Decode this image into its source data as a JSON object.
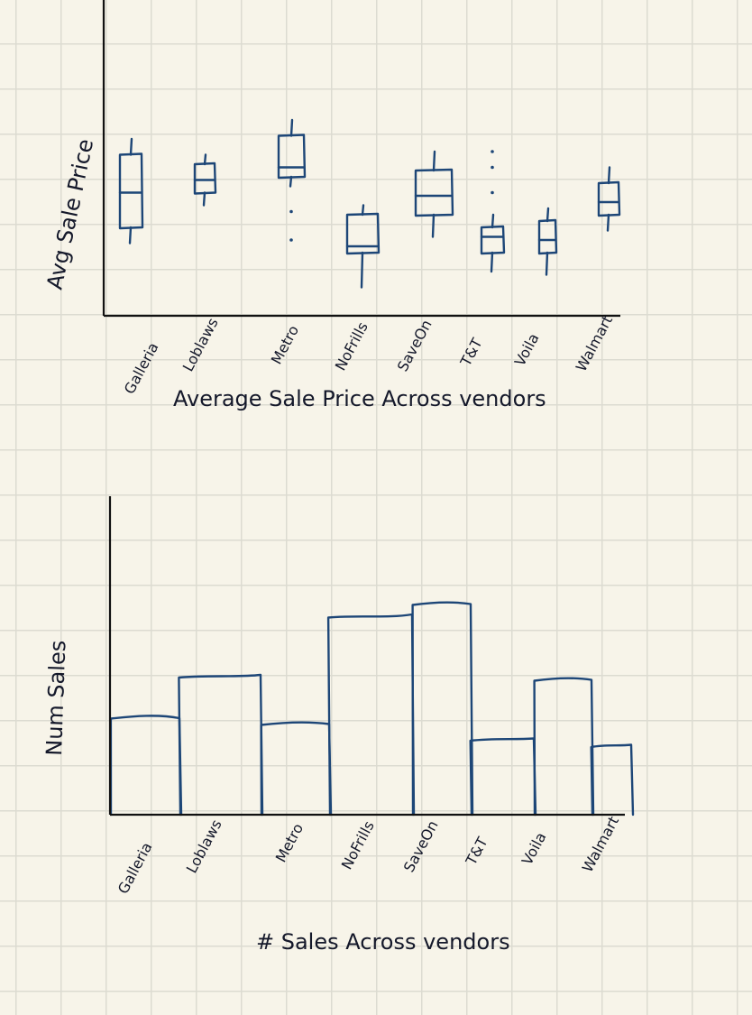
{
  "chart_data": [
    {
      "type": "box",
      "title": "Average Sale Price Across vendors",
      "ylabel": "Avg Sale Price",
      "xlabel": "",
      "categories": [
        "Galleria",
        "Loblaws",
        "Metro",
        "NoFrills",
        "SaveOn",
        "T&T",
        "Voila",
        "Walmart"
      ],
      "ylim": [
        0,
        10
      ],
      "grid": false,
      "boxes": [
        {
          "whisker_low": 2.3,
          "q1": 2.8,
          "median": 3.9,
          "q3": 5.1,
          "whisker_high": 5.6,
          "outliers": []
        },
        {
          "whisker_low": 3.5,
          "q1": 3.9,
          "median": 4.3,
          "q3": 4.8,
          "whisker_high": 5.1,
          "outliers": []
        },
        {
          "whisker_low": 4.1,
          "q1": 4.4,
          "median": 4.7,
          "q3": 5.7,
          "whisker_high": 6.2,
          "outliers": [
            3.3,
            2.4
          ]
        },
        {
          "whisker_low": 0.9,
          "q1": 2.0,
          "median": 2.2,
          "q3": 3.2,
          "whisker_high": 3.5,
          "outliers": []
        },
        {
          "whisker_low": 2.5,
          "q1": 3.2,
          "median": 3.8,
          "q3": 4.6,
          "whisker_high": 5.2,
          "outliers": []
        },
        {
          "whisker_low": 1.4,
          "q1": 2.0,
          "median": 2.5,
          "q3": 2.8,
          "whisker_high": 3.2,
          "outliers": [
            3.9,
            4.7,
            5.2
          ]
        },
        {
          "whisker_low": 1.3,
          "q1": 2.0,
          "median": 2.4,
          "q3": 3.0,
          "whisker_high": 3.4,
          "outliers": []
        },
        {
          "whisker_low": 2.7,
          "q1": 3.2,
          "median": 3.6,
          "q3": 4.2,
          "whisker_high": 4.7,
          "outliers": []
        }
      ]
    },
    {
      "type": "bar",
      "title": "# Sales Across vendors",
      "ylabel": "Num Sales",
      "xlabel": "",
      "categories": [
        "Galleria",
        "Loblaws",
        "Metro",
        "NoFrills",
        "SaveOn",
        "T&T",
        "Voila",
        "Walmart"
      ],
      "values": [
        3.1,
        4.4,
        2.9,
        6.3,
        6.7,
        2.4,
        4.3,
        2.2
      ],
      "ylim": [
        0,
        10
      ],
      "grid": false
    }
  ]
}
